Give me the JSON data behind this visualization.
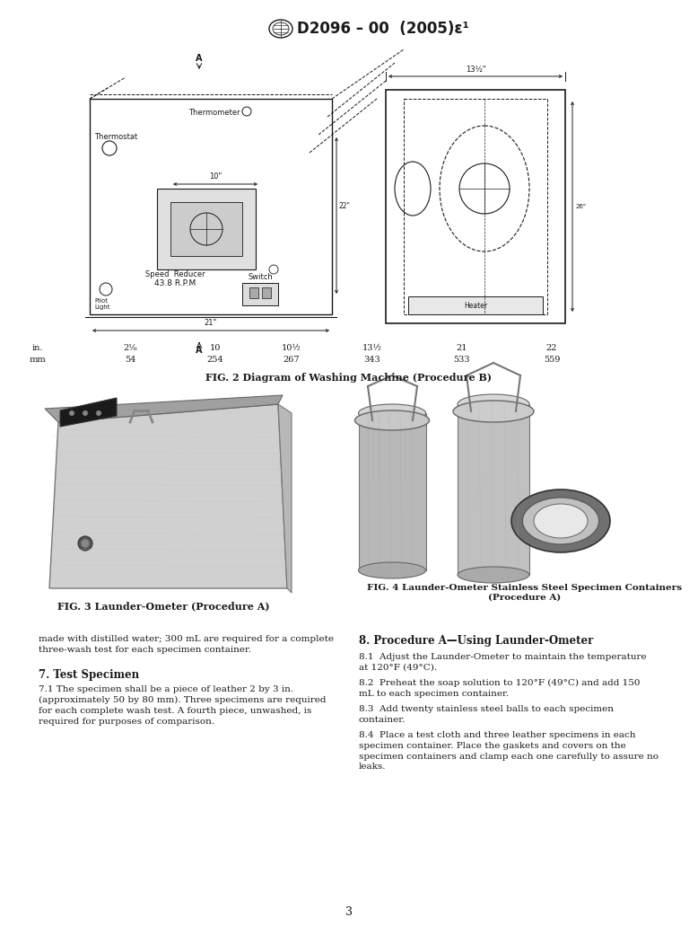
{
  "title_text": "D2096 – 00  (2005)ε¹",
  "page_number": "3",
  "bg": "#ffffff",
  "tc": "#1a1a1a",
  "fig2_caption": "FIG. 2 Diagram of Washing Machine (Procedure B)",
  "fig3_caption": "FIG. 3 Launder-Ometer (Procedure A)",
  "fig4_caption": "FIG. 4 Launder-Ometer Stainless Steel Specimen Containers\n(Procedure A)",
  "dim_in": [
    "in.",
    "2⅛",
    "10",
    "10½",
    "13½",
    "21",
    "22"
  ],
  "dim_mm": [
    "mm",
    "54",
    "254",
    "267",
    "343",
    "533",
    "559"
  ],
  "sec7_title": "7. Test Specimen",
  "sec7_body": "7.1 The specimen shall be a piece of leather 2 by 3 in.\n(approximately 50 by 80 mm). Three specimens are required\nfor each complete wash test. A fourth piece, unwashed, is\nrequired for purposes of comparison.",
  "left_cont": "made with distilled water; 300 mL are required for a complete\nthree-wash test for each specimen container.",
  "sec8_title": "8. Procedure A—Using Launder-Ometer",
  "sec8_p1": "8.1  Adjust the Launder-Ometer to maintain the temperature\nat 120°F (49°C).",
  "sec8_p2": "8.2  Preheat the soap solution to 120°F (49°C) and add 150\nmL to each specimen container.",
  "sec8_p3": "8.3  Add twenty stainless steel balls to each specimen\ncontainer.",
  "sec8_p4": "8.4  Place a test cloth and three leather specimens in each\nspecimen container. Place the gaskets and covers on the\nspecimen containers and clamp each one carefully to assure no\nleaks."
}
